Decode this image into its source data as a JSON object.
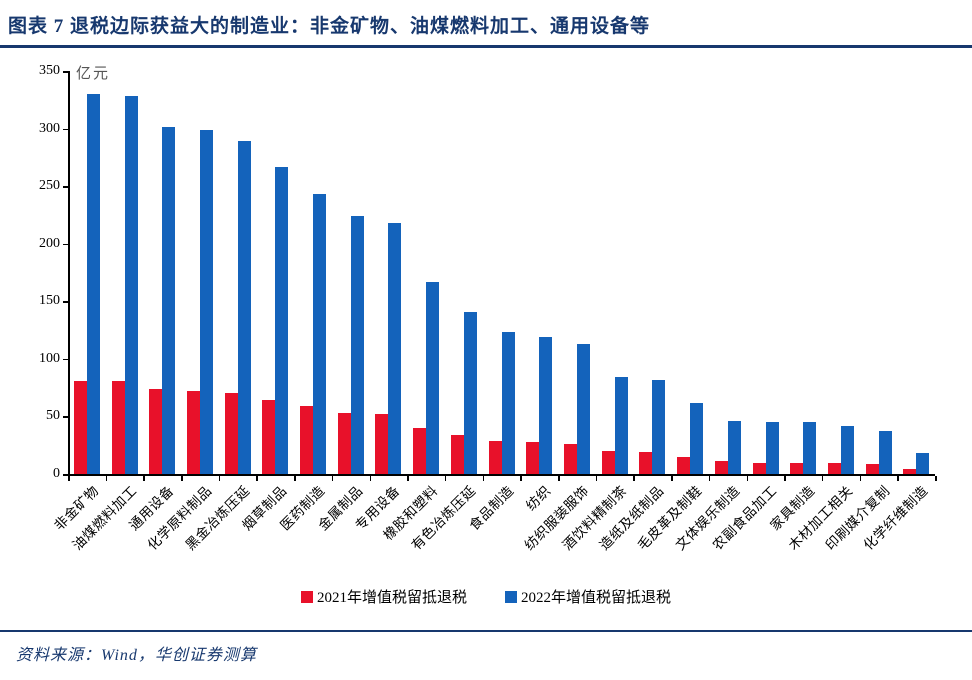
{
  "header": {
    "title": "图表 7  退税边际获益大的制造业：非金矿物、油煤燃料加工、通用设备等"
  },
  "footer": {
    "source": "资料来源：Wind，华创证券测算"
  },
  "colors": {
    "accent_navy": "#17386e",
    "series_2021_red": "#e8112a",
    "series_2022_blue": "#1463bb"
  },
  "chart_data": {
    "type": "bar",
    "unit_label": "亿元",
    "categories": [
      "非金矿物",
      "油煤燃料加工",
      "通用设备",
      "化学原料制品",
      "黑金冶炼压延",
      "烟草制品",
      "医药制造",
      "金属制品",
      "专用设备",
      "橡胶和塑料",
      "有色冶炼压延",
      "食品制造",
      "纺织",
      "纺织服装服饰",
      "酒饮料精制茶",
      "造纸及纸制品",
      "毛皮革及制鞋",
      "文体娱乐制造",
      "农副食品加工",
      "家具制造",
      "木材加工相关",
      "印刷媒介复制",
      "化学纤维制造"
    ],
    "series": [
      {
        "name": "2021年增值税留抵退税",
        "color": "#e8112a",
        "values": [
          81,
          81,
          74,
          72,
          70,
          64,
          59,
          53,
          52,
          40,
          34,
          29,
          28,
          26,
          20,
          19,
          15,
          11,
          10,
          10,
          10,
          9,
          4
        ]
      },
      {
        "name": "2022年增值税留抵退税",
        "color": "#1463bb",
        "values": [
          330,
          328,
          301,
          299,
          289,
          267,
          243,
          224,
          218,
          167,
          141,
          123,
          119,
          113,
          84,
          82,
          62,
          46,
          45,
          45,
          42,
          37,
          18
        ]
      }
    ],
    "ylim": [
      0,
      350
    ],
    "yticks": [
      0,
      50,
      100,
      150,
      200,
      250,
      300,
      350
    ],
    "grid": false,
    "legend_position": "bottom"
  }
}
